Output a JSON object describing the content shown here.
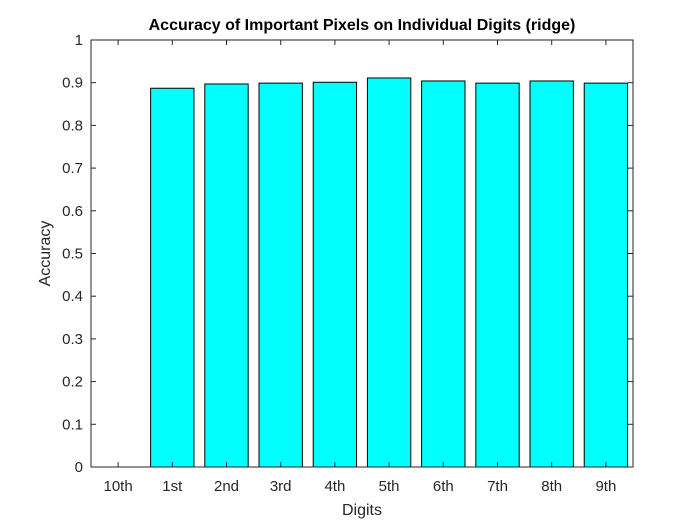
{
  "chart_data": {
    "type": "bar",
    "title": "Accuracy of Important Pixels on Individual Digits (ridge)",
    "xlabel": "Digits",
    "ylabel": "Accuracy",
    "categories": [
      "10th",
      "1st",
      "2nd",
      "3rd",
      "4th",
      "5th",
      "6th",
      "7th",
      "8th",
      "9th"
    ],
    "values": [
      0,
      0.887,
      0.897,
      0.899,
      0.901,
      0.911,
      0.904,
      0.899,
      0.904,
      0.899
    ],
    "ylim": [
      0,
      1
    ],
    "yticks": [
      "0",
      "0.1",
      "0.2",
      "0.3",
      "0.4",
      "0.5",
      "0.6",
      "0.7",
      "0.8",
      "0.9",
      "1"
    ],
    "grid": false,
    "legend": "none",
    "bar_color": "#00FFFF",
    "edge_color": "#000000"
  }
}
